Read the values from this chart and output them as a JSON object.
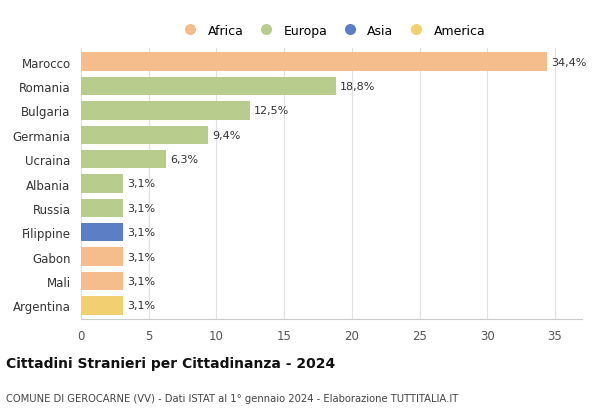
{
  "categories": [
    "Marocco",
    "Romania",
    "Bulgaria",
    "Germania",
    "Ucraina",
    "Albania",
    "Russia",
    "Filippine",
    "Gabon",
    "Mali",
    "Argentina"
  ],
  "values": [
    34.4,
    18.8,
    12.5,
    9.4,
    6.3,
    3.1,
    3.1,
    3.1,
    3.1,
    3.1,
    3.1
  ],
  "labels": [
    "34,4%",
    "18,8%",
    "12,5%",
    "9,4%",
    "6,3%",
    "3,1%",
    "3,1%",
    "3,1%",
    "3,1%",
    "3,1%",
    "3,1%"
  ],
  "colors": [
    "#f5bc8c",
    "#b8cc8e",
    "#b8cc8e",
    "#b8cc8e",
    "#b8cc8e",
    "#b8cc8e",
    "#b8cc8e",
    "#5b7ec4",
    "#f5bc8c",
    "#f5bc8c",
    "#f0d070"
  ],
  "legend": [
    {
      "label": "Africa",
      "color": "#f5bc8c"
    },
    {
      "label": "Europa",
      "color": "#b8cc8e"
    },
    {
      "label": "Asia",
      "color": "#5b7ec4"
    },
    {
      "label": "America",
      "color": "#f0d070"
    }
  ],
  "xlim": [
    0,
    37
  ],
  "xticks": [
    0,
    5,
    10,
    15,
    20,
    25,
    30,
    35
  ],
  "title": "Cittadini Stranieri per Cittadinanza - 2024",
  "subtitle": "COMUNE DI GEROCARNE (VV) - Dati ISTAT al 1° gennaio 2024 - Elaborazione TUTTITALIA.IT",
  "background_color": "#ffffff",
  "bar_height": 0.75,
  "grid_color": "#e0e0e0"
}
